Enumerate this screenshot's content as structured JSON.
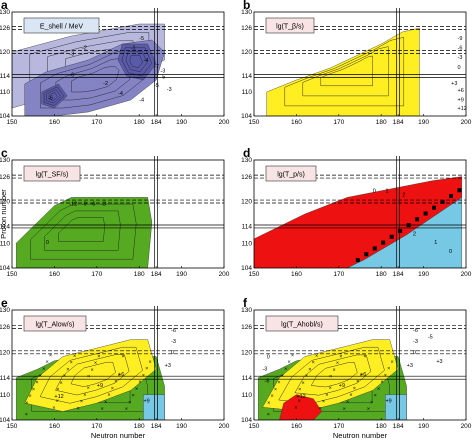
{
  "figure": {
    "xlabel": "Neutron number",
    "ylabel": "Proton number",
    "x_ticks": [
      150,
      160,
      170,
      180,
      184,
      190,
      200
    ],
    "y_ticks": [
      104,
      110,
      114,
      120,
      126,
      130
    ]
  },
  "colors": {
    "blue_dark": "#5a5aaa",
    "blue_mid": "#8484c4",
    "blue_light": "#b8b8de",
    "yellow": "#ffee22",
    "green": "#55aa22",
    "red": "#ee1111",
    "cyan": "#77c8e4",
    "label_box": "#f8e4e4",
    "label_box_blue": "#dbe6f4"
  },
  "chart_data": [
    {
      "panel": "a",
      "type": "heatmap",
      "title": "E_shell / MeV",
      "xlim": [
        150,
        200
      ],
      "ylim": [
        104,
        130
      ],
      "magic_lines": {
        "Z": [
          114,
          120,
          126
        ],
        "N": [
          184
        ]
      },
      "contour_labels": [
        "-3",
        "-2",
        "-5",
        "-1",
        "-4",
        "-3",
        "-6",
        "-2",
        "-3",
        "-4",
        "-4",
        "-5",
        "-6",
        "-7",
        "-5"
      ],
      "regions": [
        {
          "name": "light",
          "polygon": [
            [
              150,
              120
            ],
            [
              164,
              124
            ],
            [
              180,
              127
            ],
            [
              186,
              127
            ],
            [
              186,
              118
            ],
            [
              178,
              114
            ],
            [
              168,
              112
            ],
            [
              160,
              109
            ],
            [
              150,
              106
            ]
          ]
        },
        {
          "name": "mid",
          "polygon": [
            [
              153,
              104
            ],
            [
              153,
              112
            ],
            [
              158,
              115
            ],
            [
              168,
              118
            ],
            [
              176,
              122
            ],
            [
              183,
              123
            ],
            [
              186,
              120
            ],
            [
              184,
              113
            ],
            [
              178,
              108
            ],
            [
              168,
              105
            ],
            [
              160,
              104
            ]
          ]
        },
        {
          "name": "dark",
          "polygon": [
            [
              176,
              122
            ],
            [
              182,
              122
            ],
            [
              184,
              117
            ],
            [
              181,
              113
            ],
            [
              177,
              114
            ],
            [
              175,
              118
            ]
          ]
        },
        {
          "name": "dark",
          "polygon": [
            [
              157,
              110
            ],
            [
              161,
              112
            ],
            [
              163,
              109
            ],
            [
              160,
              106
            ],
            [
              157,
              107
            ]
          ]
        }
      ]
    },
    {
      "panel": "b",
      "type": "heatmap",
      "title": "lg(T_β/s)",
      "xlim": [
        150,
        200
      ],
      "ylim": [
        104,
        130
      ],
      "magic_lines": {
        "Z": [
          114,
          120,
          126
        ],
        "N": [
          184
        ]
      },
      "contour_labels": [
        "-9",
        "-6",
        "-3",
        "0",
        "+3",
        "+6",
        "+9",
        "+12"
      ],
      "regions": [
        {
          "name": "yellow",
          "polygon": [
            [
              153,
              104
            ],
            [
              153,
              110
            ],
            [
              160,
              113
            ],
            [
              168,
              116
            ],
            [
              174,
              119
            ],
            [
              180,
              122
            ],
            [
              185,
              125
            ],
            [
              189,
              126
            ],
            [
              189,
              104
            ]
          ]
        }
      ]
    },
    {
      "panel": "c",
      "type": "heatmap",
      "title": "lg(T_SF/s)",
      "xlim": [
        150,
        200
      ],
      "ylim": [
        104,
        130
      ],
      "magic_lines": {
        "Z": [
          114,
          120,
          126
        ],
        "N": [
          184
        ]
      },
      "contour_labels": [
        "-12",
        "-9",
        "-6",
        "-3",
        "0"
      ],
      "regions": [
        {
          "name": "green",
          "polygon": [
            [
              151,
              104
            ],
            [
              151,
              110
            ],
            [
              156,
              115
            ],
            [
              160,
              119
            ],
            [
              164,
              121
            ],
            [
              182,
              121
            ],
            [
              183,
              115
            ],
            [
              182,
              104
            ]
          ]
        }
      ]
    },
    {
      "panel": "d",
      "type": "heatmap",
      "title": "lg(T_p/s)",
      "xlim": [
        150,
        200
      ],
      "ylim": [
        104,
        130
      ],
      "magic_lines": {
        "Z": [
          114,
          120,
          126
        ],
        "N": [
          184
        ]
      },
      "contour_labels": [
        "0",
        "1",
        "2",
        "2",
        "1",
        "0"
      ],
      "regions": [
        {
          "name": "red",
          "polygon": [
            [
              150,
              104
            ],
            [
              150,
              111
            ],
            [
              162,
              117
            ],
            [
              172,
              121
            ],
            [
              182,
              123
            ],
            [
              192,
              125
            ],
            [
              199,
              126
            ],
            [
              199,
              121
            ],
            [
              186,
              112
            ],
            [
              176,
              106
            ],
            [
              172,
              104
            ]
          ]
        },
        {
          "name": "cyan",
          "polygon": [
            [
              172,
              104
            ],
            [
              176,
              106
            ],
            [
              186,
              112
            ],
            [
              199,
              121
            ],
            [
              199,
              104
            ]
          ]
        }
      ]
    },
    {
      "panel": "e",
      "type": "heatmap",
      "title": "lg(T_Alow/s)",
      "xlim": [
        150,
        200
      ],
      "ylim": [
        104,
        130
      ],
      "magic_lines": {
        "Z": [
          114,
          120,
          126
        ],
        "N": [
          184
        ]
      },
      "contour_labels": [
        "-6",
        "-3",
        "0",
        "+3",
        "+6",
        "+9",
        "+12",
        "+9"
      ],
      "regions": [
        {
          "name": "green",
          "polygon": [
            [
              151,
              104
            ],
            [
              151,
              114
            ],
            [
              156,
              116
            ],
            [
              160,
              118
            ],
            [
              166,
              119
            ],
            [
              184,
              119
            ],
            [
              186,
              112
            ],
            [
              186,
              104
            ]
          ]
        },
        {
          "name": "yellow",
          "polygon": [
            [
              153,
              108
            ],
            [
              156,
              114
            ],
            [
              162,
              119
            ],
            [
              170,
              121
            ],
            [
              178,
              123
            ],
            [
              182,
              123
            ],
            [
              184,
              116
            ],
            [
              178,
              111
            ],
            [
              170,
              108
            ],
            [
              162,
              106
            ]
          ]
        },
        {
          "name": "cyan",
          "polygon": [
            [
              181,
              104
            ],
            [
              181,
              110
            ],
            [
              186,
              110
            ],
            [
              186,
              104
            ]
          ]
        }
      ]
    },
    {
      "panel": "f",
      "type": "heatmap",
      "title": "lg(T_Ahobl/s)",
      "xlim": [
        150,
        200
      ],
      "ylim": [
        104,
        130
      ],
      "magic_lines": {
        "Z": [
          114,
          120,
          126
        ],
        "N": [
          184
        ]
      },
      "contour_labels": [
        "-6",
        "-3",
        "0",
        "+3",
        "+6",
        "+9",
        "+12",
        "+9",
        "0",
        "-3",
        "-6",
        "-5",
        "+3"
      ],
      "regions": [
        {
          "name": "green",
          "polygon": [
            [
              151,
              104
            ],
            [
              151,
              114
            ],
            [
              156,
              116
            ],
            [
              160,
              118
            ],
            [
              166,
              119
            ],
            [
              184,
              119
            ],
            [
              186,
              112
            ],
            [
              186,
              104
            ]
          ]
        },
        {
          "name": "yellow",
          "polygon": [
            [
              152,
              107
            ],
            [
              156,
              114
            ],
            [
              162,
              119
            ],
            [
              170,
              121
            ],
            [
              178,
              123
            ],
            [
              182,
              123
            ],
            [
              184,
              116
            ],
            [
              178,
              111
            ],
            [
              170,
              108
            ],
            [
              162,
              106
            ]
          ]
        },
        {
          "name": "red",
          "polygon": [
            [
              156,
              104
            ],
            [
              157,
              108
            ],
            [
              160,
              110
            ],
            [
              164,
              109
            ],
            [
              166,
              106
            ],
            [
              164,
              104
            ]
          ]
        },
        {
          "name": "cyan",
          "polygon": [
            [
              181,
              104
            ],
            [
              181,
              110
            ],
            [
              186,
              110
            ],
            [
              186,
              104
            ]
          ]
        }
      ]
    }
  ]
}
